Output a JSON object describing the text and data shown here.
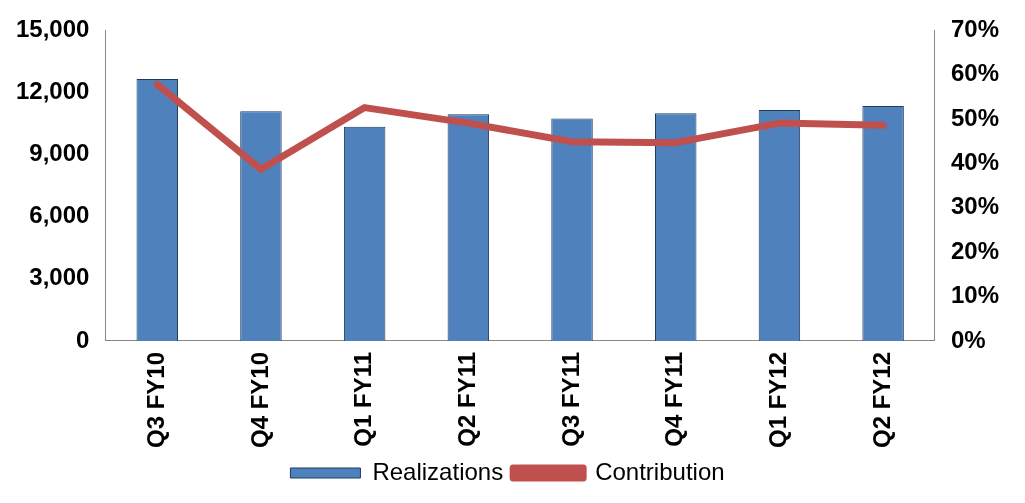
{
  "chart_data": {
    "type": "bar",
    "categories": [
      "Q3 FY10",
      "Q4 FY10",
      "Q1 FY11",
      "Q2 FY11",
      "Q3 FY11",
      "Q4 FY11",
      "Q1 FY12",
      "Q2 FY12"
    ],
    "series": [
      {
        "name": "Realizations",
        "color": "#4f81bd",
        "values": [
          12650,
          11100,
          10350,
          10950,
          10750,
          11000,
          11150,
          11350
        ]
      },
      {
        "name": "Contribution",
        "type": "line",
        "axis": "y2",
        "color": "#c0504d",
        "values": [
          57.8,
          38.7,
          52.6,
          49.1,
          44.9,
          44.7,
          49.1,
          48.6
        ]
      }
    ],
    "ylim": [
      0,
      15000
    ],
    "yticks": [
      {
        "value": 0,
        "label": "0"
      },
      {
        "value": 3000,
        "label": "3,000"
      },
      {
        "value": 6000,
        "label": "6,000"
      },
      {
        "value": 9000,
        "label": "9,000"
      },
      {
        "value": 12000,
        "label": "12,000"
      },
      {
        "value": 15000,
        "label": "15,000"
      }
    ],
    "y2lim": [
      0,
      70
    ],
    "y2ticks": [
      {
        "value": 0,
        "label": "0%"
      },
      {
        "value": 10,
        "label": "10%"
      },
      {
        "value": 20,
        "label": "20%"
      },
      {
        "value": 30,
        "label": "30%"
      },
      {
        "value": 40,
        "label": "40%"
      },
      {
        "value": 50,
        "label": "50%"
      },
      {
        "value": 60,
        "label": "60%"
      },
      {
        "value": 70,
        "label": "70%"
      }
    ],
    "grid": false,
    "legend": "bottom",
    "marker": "none"
  }
}
